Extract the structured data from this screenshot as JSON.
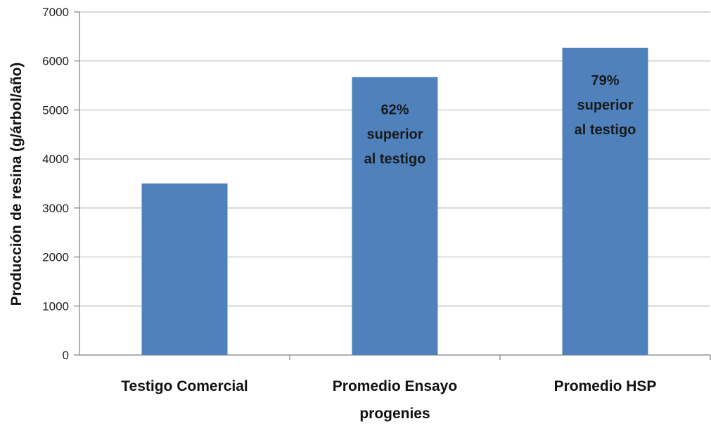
{
  "chart_data": {
    "type": "bar",
    "categories": [
      [
        "Testigo Comercial"
      ],
      [
        "Promedio Ensayo",
        "progenies"
      ],
      [
        "Promedio HSP"
      ]
    ],
    "values": [
      3500,
      5670,
      6270
    ],
    "annotations": [
      [],
      [
        "62%",
        "superior",
        "al testigo"
      ],
      [
        "79%",
        "superior",
        "al testigo"
      ]
    ],
    "xlabel": "",
    "ylabel": "Producción de resina (g/árbol/año)",
    "ylim": [
      0,
      7000
    ],
    "yticks": [
      0,
      1000,
      2000,
      3000,
      4000,
      5000,
      6000,
      7000
    ],
    "grid": true,
    "legend": "none",
    "colors": {
      "bar": "#4f81bd",
      "grid": "#bfbfbf",
      "axis": "#7f7f7f"
    }
  }
}
